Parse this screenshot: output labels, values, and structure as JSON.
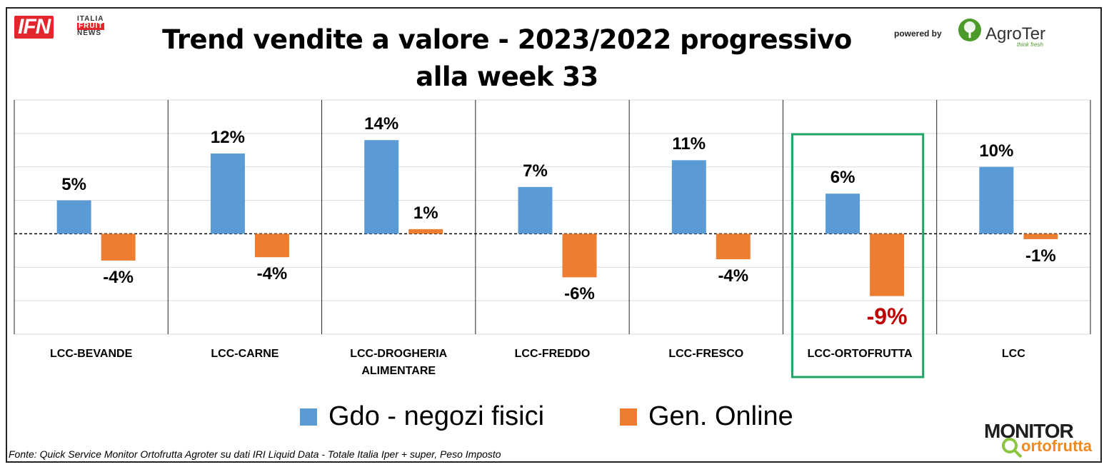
{
  "header": {
    "title_line1": "Trend vendite a valore - 2023/2022 progressivo",
    "title_line2": "alla week 33",
    "powered_by": "powered by",
    "agroter_name": "AgroTer",
    "agroter_tagline": "think fresh"
  },
  "logo_ifn": {
    "mark": "IFN",
    "line1": "ITALIA",
    "line2": "FRUIT",
    "line3": "NEWS"
  },
  "logo_monitor": {
    "word": "MONITOR",
    "sub": "ortofrutta"
  },
  "source_note": "Fonte: Quick Service Monitor Ortofrutta Agroter su dati IRI Liquid Data - Totale Italia Iper + super, Peso Imposto",
  "colors": {
    "gdo": "#5b9bd5",
    "online": "#ed7d31",
    "highlight_box": "#21a366",
    "highlight_label": "#c00000",
    "grid": "#d9d9d9"
  },
  "chart_data": {
    "type": "bar",
    "categories": [
      "LCC-BEVANDE",
      "LCC-CARNE",
      "LCC-DROGHERIA ALIMENTARE",
      "LCC-FREDDO",
      "LCC-FRESCO",
      "LCC-ORTOFRUTTA",
      "LCC"
    ],
    "series": [
      {
        "name": "Gdo - negozi fisici",
        "values": [
          5,
          12,
          14,
          7,
          11,
          6,
          10
        ],
        "labels": [
          "5%",
          "12%",
          "14%",
          "7%",
          "11%",
          "6%",
          "10%"
        ]
      },
      {
        "name": "Gen. Online",
        "values": [
          -4,
          -3.5,
          0.7,
          -6.5,
          -3.8,
          -9.3,
          -0.8
        ],
        "labels": [
          "-4%",
          "-4%",
          "1%",
          "-6%",
          "-4%",
          "-9%",
          "-1%"
        ]
      }
    ],
    "ylim": [
      -15,
      20
    ],
    "unit": "%",
    "highlighted_category": "LCC-ORTOFRUTTA",
    "legend_position": "bottom",
    "grid": true
  }
}
